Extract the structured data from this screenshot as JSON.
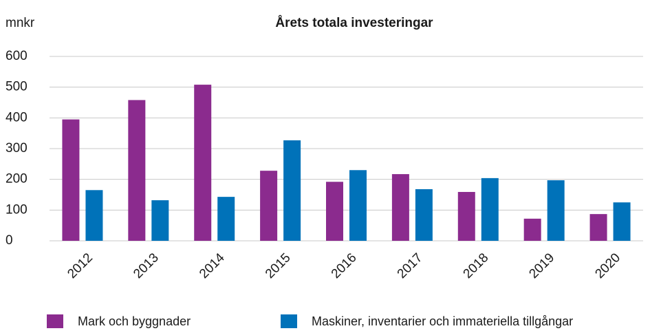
{
  "chart_data": {
    "type": "bar",
    "title": "Årets totala investeringar",
    "y_label": "mnkr",
    "categories": [
      "2012",
      "2013",
      "2014",
      "2015",
      "2016",
      "2017",
      "2018",
      "2019",
      "2020"
    ],
    "series": [
      {
        "name": "Mark och byggnader",
        "color": "#8b2b8e",
        "values": [
          395,
          458,
          508,
          228,
          192,
          217,
          159,
          72,
          87
        ]
      },
      {
        "name": "Maskiner, inventarier och immateriella tillgångar",
        "color": "#0072b9",
        "values": [
          165,
          132,
          143,
          327,
          230,
          168,
          204,
          197,
          125
        ]
      }
    ],
    "ylim": [
      0,
      600
    ],
    "yticks": [
      0,
      100,
      200,
      300,
      400,
      500,
      600
    ],
    "grid": true,
    "legend": "bottom"
  }
}
